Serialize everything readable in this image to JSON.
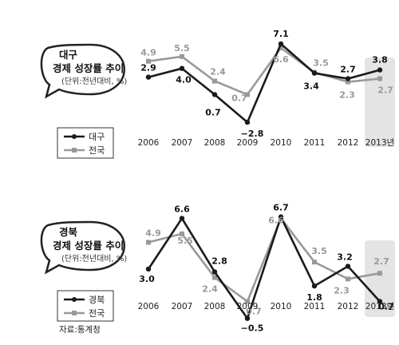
{
  "colors": {
    "region": "#1a1a1a",
    "national": "#999999",
    "highlight": "#e4e4e4"
  },
  "source": "자료:통계청",
  "chart_data": [
    {
      "type": "line",
      "title_line1": "대구",
      "title_line2": "경제 성장률 추이",
      "unit": "(단위:전년대비, %)",
      "categories": [
        "2006",
        "2007",
        "2008",
        "2009",
        "2010",
        "2011",
        "2012",
        "2013년"
      ],
      "ylim": [
        -3.5,
        7.8
      ],
      "grid": false,
      "legend": "bottom-left",
      "series": [
        {
          "name": "대구",
          "color": "#1a1a1a",
          "values": [
            2.9,
            4.0,
            0.7,
            -2.8,
            7.1,
            3.4,
            2.7,
            3.8
          ],
          "labels": [
            "2.9",
            "4.0",
            "0.7",
            "−2.8",
            "7.1",
            "3.4",
            "2.7",
            "3.8"
          ]
        },
        {
          "name": "전국",
          "color": "#999999",
          "values": [
            4.9,
            5.5,
            2.4,
            0.7,
            6.6,
            3.5,
            2.3,
            2.7
          ],
          "labels": [
            "4.9",
            "5.5",
            "2.4",
            "0.7",
            "6.6",
            "3.5",
            "2.3",
            "2.7"
          ]
        }
      ]
    },
    {
      "type": "line",
      "title_line1": "경북",
      "title_line2": "경제 성장률 추이",
      "unit": "(단위:전년대비, %)",
      "categories": [
        "2006",
        "2007",
        "2008",
        "2009",
        "2010",
        "2011",
        "2012",
        "2013년"
      ],
      "ylim": [
        -0.8,
        7.3
      ],
      "grid": false,
      "legend": "bottom-left",
      "series": [
        {
          "name": "경북",
          "color": "#1a1a1a",
          "values": [
            3.0,
            6.6,
            2.8,
            -0.5,
            6.7,
            1.8,
            3.2,
            0.7
          ],
          "labels": [
            "3.0",
            "6.6",
            "2.8",
            "−0.5",
            "6.7",
            "1.8",
            "3.2",
            "0.7"
          ]
        },
        {
          "name": "전국",
          "color": "#999999",
          "values": [
            4.9,
            5.5,
            2.4,
            0.7,
            6.6,
            3.5,
            2.3,
            2.7
          ],
          "labels": [
            "4.9",
            "5.5",
            "2.4",
            "0.7",
            "6.6",
            "3.5",
            "2.3",
            "2.7"
          ]
        }
      ]
    }
  ]
}
